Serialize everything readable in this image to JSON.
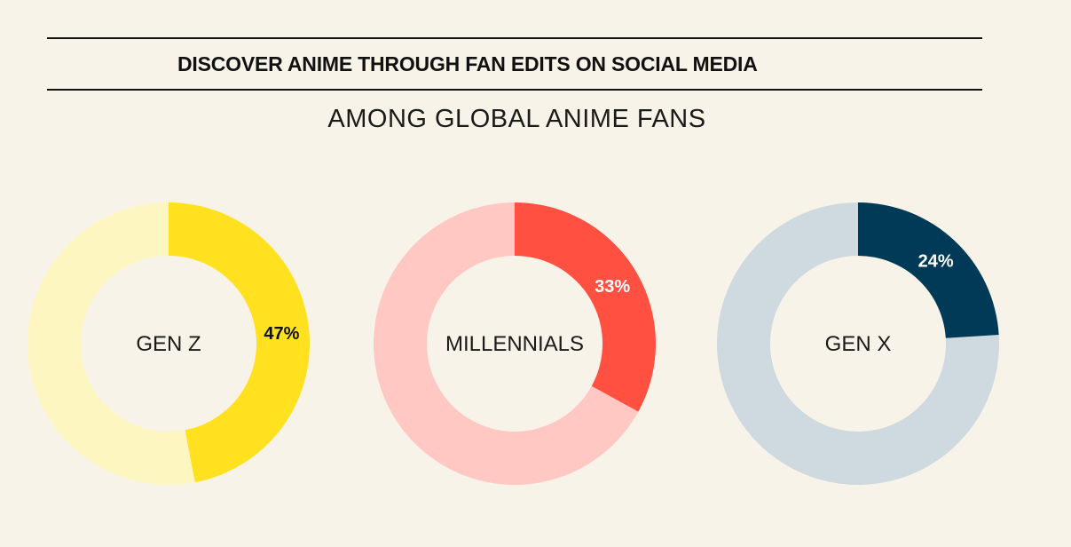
{
  "title": "DISCOVER ANIME THROUGH FAN EDITS ON SOCIAL MEDIA",
  "subtitle": "AMONG GLOBAL ANIME FANS",
  "chart_data": {
    "type": "pie",
    "charts": [
      {
        "label": "GEN Z",
        "value": 47,
        "value_label": "47%",
        "color": "#ffe11f",
        "remainder_color": "#fef6c1",
        "text_color": "#111111"
      },
      {
        "label": "MILLENNIALS",
        "value": 33,
        "value_label": "33%",
        "color": "#ff5042",
        "remainder_color": "#ffc8c2",
        "text_color": "#ffffff"
      },
      {
        "label": "GEN X",
        "value": 24,
        "value_label": "24%",
        "color": "#003a57",
        "remainder_color": "#cfd9e0",
        "text_color": "#ffffff"
      }
    ]
  }
}
